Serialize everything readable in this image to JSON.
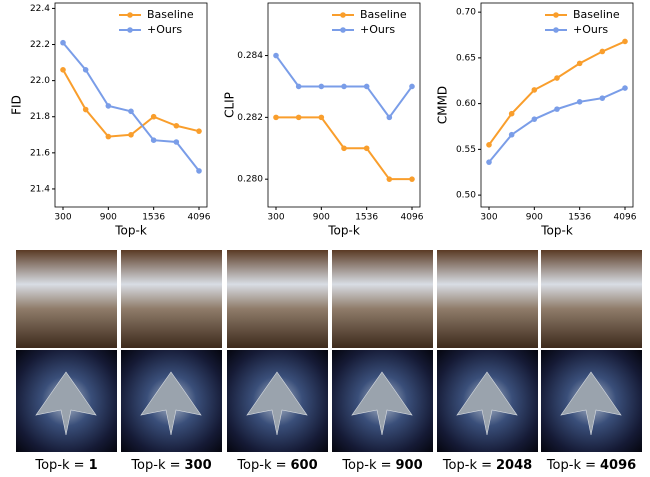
{
  "chart_data": [
    {
      "type": "line",
      "categories": [
        "300",
        null,
        "900",
        null,
        "1536",
        null,
        "4096"
      ],
      "xlabel": "Top-k",
      "ylabel": "FID",
      "ylim": [
        21.3,
        22.43
      ],
      "yticks": [
        21.4,
        21.6,
        21.8,
        {
          "value": 22,
          "label": "22.0"
        },
        22.2,
        22.4
      ],
      "legend": "upper right",
      "series": [
        {
          "name": "Baseline",
          "color": "#f99e2c",
          "values": [
            22.06,
            21.84,
            21.69,
            21.7,
            21.8,
            21.75,
            21.72
          ]
        },
        {
          "name": "+Ours",
          "color": "#7a9de8",
          "values": [
            22.21,
            22.06,
            21.86,
            21.83,
            21.67,
            21.66,
            21.5
          ]
        }
      ]
    },
    {
      "type": "line",
      "categories": [
        "300",
        null,
        "900",
        null,
        "1536",
        null,
        "4096"
      ],
      "xlabel": "Top-k",
      "ylabel": "CLIP",
      "ylim": [
        0.2791,
        0.2857
      ],
      "yticks": [
        {
          "value": 0.28,
          "label": "0.280"
        },
        0.282,
        0.284
      ],
      "legend": "upper right",
      "series": [
        {
          "name": "Baseline",
          "color": "#f99e2c",
          "values": [
            0.282,
            0.282,
            0.282,
            0.281,
            0.281,
            0.28,
            0.28
          ]
        },
        {
          "name": "+Ours",
          "color": "#7a9de8",
          "values": [
            0.284,
            0.283,
            0.283,
            0.283,
            0.283,
            0.282,
            0.283
          ]
        }
      ]
    },
    {
      "type": "line",
      "categories": [
        "300",
        null,
        "900",
        null,
        "1536",
        null,
        "4096"
      ],
      "xlabel": "Top-k",
      "ylabel": "CMMD",
      "ylim": [
        0.487,
        0.71
      ],
      "yticks": [
        {
          "value": 0.5,
          "label": "0.50"
        },
        0.55,
        {
          "value": 0.6,
          "label": "0.60"
        },
        0.65,
        {
          "value": 0.7,
          "label": "0.70"
        }
      ],
      "legend": "upper right",
      "series": [
        {
          "name": "Baseline",
          "color": "#f99e2c",
          "values": [
            0.555,
            0.589,
            0.615,
            0.628,
            0.644,
            0.657,
            0.668
          ]
        },
        {
          "name": "+Ours",
          "color": "#7a9de8",
          "values": [
            0.536,
            0.566,
            0.583,
            0.594,
            0.602,
            0.606,
            0.617
          ]
        }
      ]
    }
  ],
  "captions": [
    {
      "prefix": "Top-k =",
      "k": "1"
    },
    {
      "prefix": "Top-k =",
      "k": "300"
    },
    {
      "prefix": "Top-k =",
      "k": "600"
    },
    {
      "prefix": "Top-k =",
      "k": "900"
    },
    {
      "prefix": "Top-k =",
      "k": "2048"
    },
    {
      "prefix": "Top-k =",
      "k": "4096"
    }
  ]
}
